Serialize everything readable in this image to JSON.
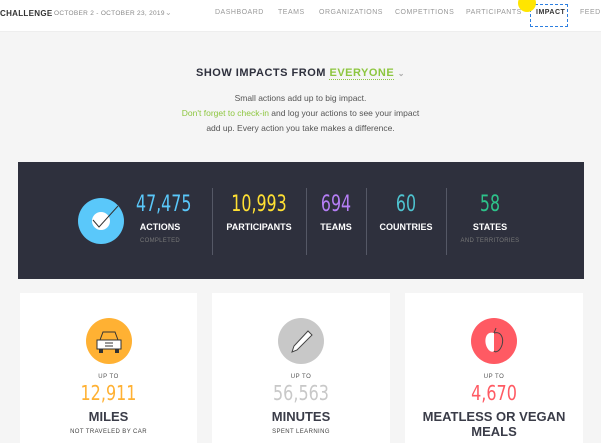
{
  "nav": {
    "brand": "CHALLENGE",
    "dates": "OCTOBER 2 - OCTOBER 23, 2019",
    "items": [
      "DASHBOARD",
      "TEAMS",
      "ORGANIZATIONS",
      "COMPETITIONS",
      "PARTICIPANTS",
      "IMPACT",
      "FEED"
    ],
    "active": "IMPACT"
  },
  "heading": {
    "prefix": "SHOW IMPACTS FROM",
    "selected": "EVERYONE"
  },
  "intro": {
    "line1": "Small actions add up to big impact.",
    "link": "Don't forget to check-in",
    "line2": " and log your actions to see your impact",
    "line3": "add up. Every action you take makes a difference."
  },
  "stats": [
    {
      "value": "47,475",
      "label": "ACTIONS",
      "sub": "COMPLETED",
      "color": "#5ac8fa"
    },
    {
      "value": "10,993",
      "label": "PARTICIPANTS",
      "sub": "",
      "color": "#ffe033"
    },
    {
      "value": "694",
      "label": "TEAMS",
      "sub": "",
      "color": "#b57ef5"
    },
    {
      "value": "60",
      "label": "COUNTRIES",
      "sub": "",
      "color": "#4ec3d0"
    },
    {
      "value": "58",
      "label": "STATES",
      "sub": "AND TERRITORIES",
      "color": "#2dc28a"
    }
  ],
  "cards": [
    {
      "upto": "UP TO",
      "value": "12,911",
      "unit": "MILES",
      "desc": "NOT TRAVELED BY CAR",
      "color": "#ffb133",
      "icon": "car-icon"
    },
    {
      "upto": "UP TO",
      "value": "56,563",
      "unit": "MINUTES",
      "desc": "SPENT LEARNING",
      "color": "#c8c8c8",
      "icon": "pencil-icon"
    },
    {
      "upto": "UP TO",
      "value": "4,670",
      "unit": "MEATLESS OR VEGAN MEALS",
      "desc": "",
      "color": "#ff5a63",
      "icon": "apple-icon"
    }
  ]
}
